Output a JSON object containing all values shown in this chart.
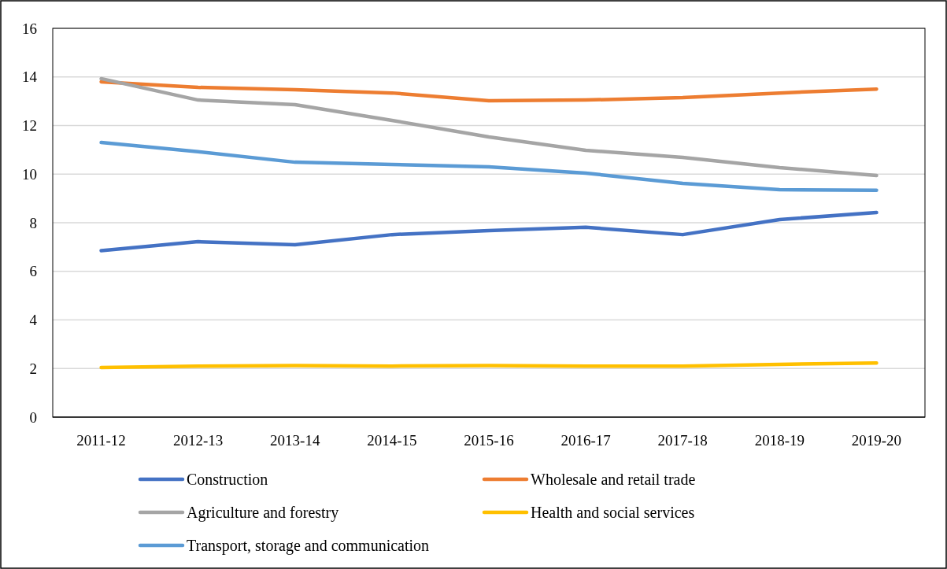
{
  "chart_data": {
    "type": "line",
    "categories": [
      "2011-12",
      "2012-13",
      "2013-14",
      "2014-15",
      "2015-16",
      "2016-17",
      "2017-18",
      "2018-19",
      "2019-20"
    ],
    "series": [
      {
        "name": "Construction",
        "color": "#4472c4",
        "values": [
          6.85,
          7.22,
          7.09,
          7.51,
          7.68,
          7.81,
          7.51,
          8.13,
          8.42
        ]
      },
      {
        "name": "Wholesale and retail trade",
        "color": "#ed7d31",
        "values": [
          13.8,
          13.57,
          13.47,
          13.34,
          13.02,
          13.05,
          13.15,
          13.34,
          13.5
        ]
      },
      {
        "name": "Agriculture and forestry",
        "color": "#a5a5a5",
        "values": [
          13.93,
          13.05,
          12.86,
          12.21,
          11.53,
          10.98,
          10.69,
          10.27,
          9.94
        ]
      },
      {
        "name": "Health and social services",
        "color": "#ffc000",
        "values": [
          2.04,
          2.1,
          2.12,
          2.1,
          2.12,
          2.1,
          2.1,
          2.17,
          2.23
        ]
      },
      {
        "name": "Transport, storage and communication",
        "color": "#5b9bd5",
        "values": [
          11.3,
          10.92,
          10.49,
          10.4,
          10.3,
          10.04,
          9.62,
          9.36,
          9.34
        ]
      }
    ],
    "ylim": [
      0,
      16
    ],
    "yticks": [
      0,
      2,
      4,
      6,
      8,
      10,
      12,
      14,
      16
    ],
    "grid": "y",
    "legend": "bottom",
    "marker": "none",
    "line_style": "solid"
  }
}
